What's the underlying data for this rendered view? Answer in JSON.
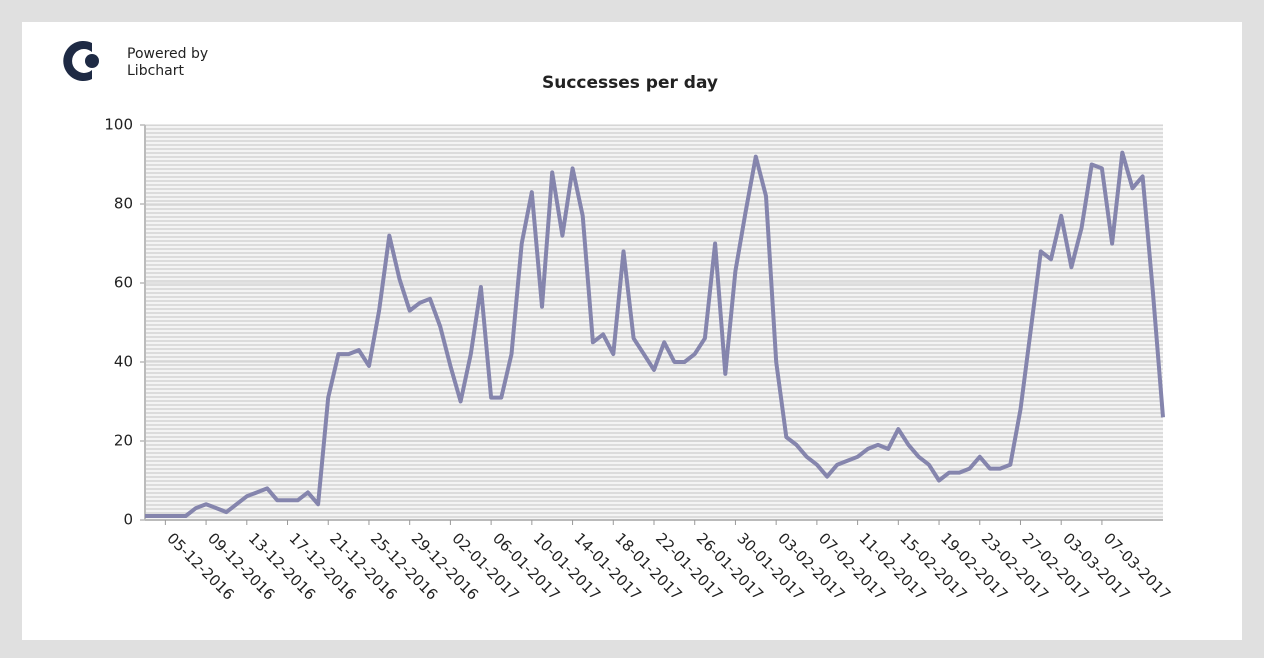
{
  "logo": {
    "line1": "Powered by",
    "line2": "Libchart"
  },
  "chart_data": {
    "type": "line",
    "title": "Successes per day",
    "categories": [
      null,
      null,
      "05-12-2016",
      null,
      null,
      null,
      "09-12-2016",
      null,
      null,
      null,
      "13-12-2016",
      null,
      null,
      null,
      "17-12-2016",
      null,
      null,
      null,
      "21-12-2016",
      null,
      null,
      null,
      "25-12-2016",
      null,
      null,
      null,
      "29-12-2016",
      null,
      null,
      null,
      "02-01-2017",
      null,
      null,
      null,
      "06-01-2017",
      null,
      null,
      null,
      "10-01-2017",
      null,
      null,
      null,
      "14-01-2017",
      null,
      null,
      null,
      "18-01-2017",
      null,
      null,
      null,
      "22-01-2017",
      null,
      null,
      null,
      "26-01-2017",
      null,
      null,
      null,
      "30-01-2017",
      null,
      null,
      null,
      "03-02-2017",
      null,
      null,
      null,
      "07-02-2017",
      null,
      null,
      null,
      "11-02-2017",
      null,
      null,
      null,
      "15-02-2017",
      null,
      null,
      null,
      "19-02-2017",
      null,
      null,
      null,
      "23-02-2017",
      null,
      null,
      null,
      "27-02-2017",
      null,
      null,
      null,
      "03-03-2017",
      null,
      null,
      null,
      "07-03-2017",
      null,
      null,
      null,
      null,
      null,
      null
    ],
    "values": [
      1,
      1,
      1,
      1,
      1,
      3,
      4,
      3,
      2,
      4,
      6,
      7,
      8,
      5,
      5,
      5,
      7,
      4,
      31,
      42,
      42,
      43,
      39,
      53,
      72,
      61,
      53,
      55,
      56,
      49,
      39,
      30,
      42,
      59,
      31,
      31,
      42,
      70,
      83,
      54,
      88,
      72,
      89,
      77,
      45,
      47,
      42,
      68,
      46,
      42,
      38,
      45,
      40,
      40,
      42,
      46,
      70,
      37,
      63,
      78,
      92,
      82,
      40,
      21,
      19,
      16,
      14,
      11,
      14,
      15,
      16,
      18,
      19,
      18,
      23,
      19,
      16,
      14,
      10,
      12,
      12,
      13,
      16,
      13,
      13,
      14,
      28,
      48,
      68,
      66,
      77,
      64,
      74,
      90,
      89,
      70,
      93,
      84,
      87,
      58,
      26
    ],
    "color": "#8585ad",
    "ylim": [
      0,
      100
    ],
    "yticks": [
      0,
      20,
      40,
      60,
      80,
      100
    ],
    "grid": true
  }
}
